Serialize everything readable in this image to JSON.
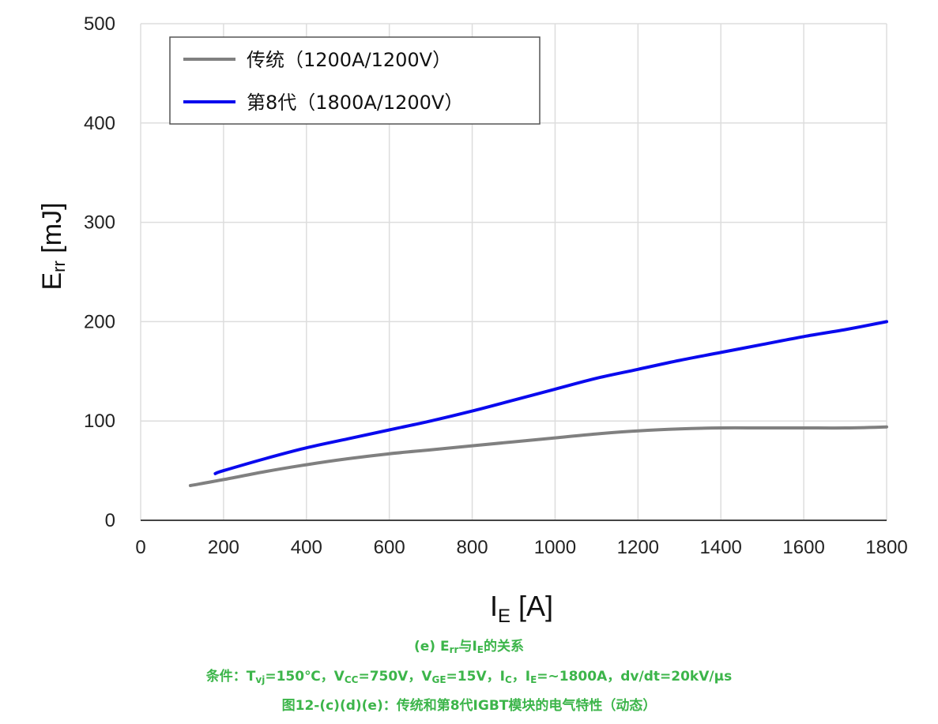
{
  "chart_data": {
    "type": "line",
    "xlabel": {
      "main": "I",
      "sub": "E",
      "unit": "[A]"
    },
    "ylabel": {
      "main": "E",
      "sub": "rr",
      "unit": "[mJ]"
    },
    "xlim": [
      0,
      1800
    ],
    "ylim": [
      0,
      500
    ],
    "x_ticks": [
      0,
      200,
      400,
      600,
      800,
      1000,
      1200,
      1400,
      1600,
      1800
    ],
    "y_ticks": [
      0,
      100,
      200,
      300,
      400,
      500
    ],
    "grid": true,
    "legend_position": "top-left",
    "series": [
      {
        "name": "传统（1200A/1200V）",
        "color": "#808080",
        "x": [
          120,
          200,
          300,
          400,
          500,
          600,
          700,
          800,
          900,
          1000,
          1100,
          1200,
          1300,
          1400,
          1500,
          1600,
          1700,
          1800
        ],
        "y": [
          35,
          41,
          49,
          56,
          62,
          67,
          71,
          75,
          79,
          83,
          87,
          90,
          92,
          93,
          93,
          93,
          93,
          94
        ]
      },
      {
        "name": "第8代（1800A/1200V）",
        "color": "#0a0aee",
        "x": [
          180,
          200,
          300,
          400,
          500,
          600,
          700,
          800,
          900,
          1000,
          1100,
          1200,
          1300,
          1400,
          1500,
          1600,
          1700,
          1800
        ],
        "y": [
          47,
          50,
          62,
          73,
          82,
          91,
          100,
          110,
          121,
          132,
          143,
          152,
          161,
          169,
          177,
          185,
          192,
          200
        ]
      }
    ]
  },
  "caption": {
    "line1": {
      "prefix": "(e) E",
      "sub1": "rr",
      "mid": "与I",
      "sub2": "E",
      "suffix": "的关系"
    },
    "line2": {
      "p1": "条件：T",
      "s1": "vj",
      "p2": "=150℃，V",
      "s2": "CC",
      "p3": "=750V，V",
      "s3": "GE",
      "p4": "=15V，I",
      "s4": "C",
      "p5": "，I",
      "s5": "E",
      "p6": "=~1800A，dv/dt=20kV/μs"
    },
    "line3": "图12-(c)(d)(e)：传统和第8代IGBT模块的电气特性（动态）"
  },
  "colors": {
    "caption": "#3cb54a",
    "grid": "#dddddd",
    "axis": "#444444"
  }
}
